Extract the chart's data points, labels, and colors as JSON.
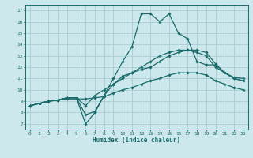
{
  "xlabel": "Humidex (Indice chaleur)",
  "bg_color": "#cde8ec",
  "grid_color": "#a8cdd4",
  "line_color": "#1a6b6b",
  "xlim": [
    -0.5,
    23.5
  ],
  "ylim": [
    6.5,
    17.5
  ],
  "xticks": [
    0,
    1,
    2,
    3,
    4,
    5,
    6,
    7,
    8,
    9,
    10,
    11,
    12,
    13,
    14,
    15,
    16,
    17,
    18,
    19,
    20,
    21,
    22,
    23
  ],
  "yticks": [
    7,
    8,
    9,
    10,
    11,
    12,
    13,
    14,
    15,
    16,
    17
  ],
  "lines": [
    {
      "x": [
        0,
        1,
        2,
        3,
        4,
        5,
        6,
        7,
        8,
        9,
        10,
        11,
        12,
        13,
        14,
        15,
        16,
        17,
        18,
        19,
        20,
        21,
        22,
        23
      ],
      "y": [
        8.6,
        8.8,
        9.0,
        9.1,
        9.3,
        9.3,
        7.8,
        8.1,
        9.5,
        10.5,
        11.2,
        11.5,
        11.8,
        12.0,
        12.5,
        13.0,
        13.3,
        13.5,
        13.5,
        13.3,
        12.3,
        11.5,
        11.1,
        11.0
      ]
    },
    {
      "x": [
        0,
        1,
        2,
        3,
        4,
        5,
        6,
        7,
        8,
        9,
        10,
        11,
        12,
        13,
        14,
        15,
        16,
        17,
        18,
        19,
        20,
        21,
        22,
        23
      ],
      "y": [
        8.6,
        8.8,
        9.0,
        9.1,
        9.3,
        9.3,
        8.6,
        9.5,
        10.0,
        10.5,
        11.0,
        11.5,
        12.0,
        12.5,
        13.0,
        13.3,
        13.5,
        13.5,
        13.3,
        13.0,
        12.0,
        11.5,
        11.0,
        10.8
      ]
    },
    {
      "x": [
        0,
        1,
        2,
        3,
        4,
        5,
        6,
        7,
        8,
        9,
        10,
        11,
        12,
        13,
        14,
        15,
        16,
        17,
        18,
        19,
        20,
        21,
        22,
        23
      ],
      "y": [
        8.6,
        8.8,
        9.0,
        9.1,
        9.2,
        9.2,
        9.2,
        9.3,
        9.4,
        9.7,
        10.0,
        10.2,
        10.5,
        10.8,
        11.0,
        11.3,
        11.5,
        11.5,
        11.5,
        11.3,
        10.8,
        10.5,
        10.2,
        10.0
      ]
    },
    {
      "x": [
        0,
        1,
        2,
        3,
        4,
        5,
        6,
        7,
        8,
        9,
        10,
        11,
        12,
        13,
        14,
        15,
        16,
        17,
        18,
        19,
        20,
        21,
        22,
        23
      ],
      "y": [
        8.6,
        8.8,
        9.0,
        9.1,
        9.3,
        9.3,
        7.0,
        8.0,
        9.5,
        11.0,
        12.5,
        13.8,
        16.7,
        16.7,
        16.0,
        16.7,
        15.0,
        14.5,
        12.5,
        12.2,
        12.2,
        11.5,
        11.0,
        10.8
      ]
    }
  ]
}
